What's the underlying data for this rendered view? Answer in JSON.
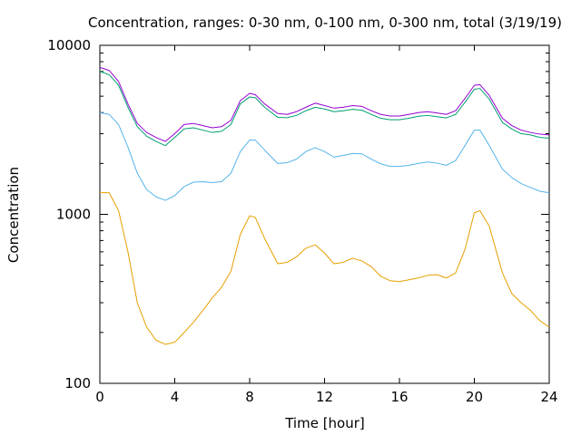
{
  "chart_data": {
    "type": "line",
    "title": "Concentration, ranges: 0-30 nm, 0-100 nm, 0-300 nm, total (3/19/19)",
    "xlabel": "Time [hour]",
    "ylabel": "Concentration",
    "xlim": [
      0,
      24
    ],
    "ylim": [
      100,
      10000
    ],
    "yscale": "log",
    "x_ticks": [
      0,
      4,
      8,
      12,
      16,
      20,
      24
    ],
    "x_tick_labels": [
      "0",
      "4",
      "8",
      "12",
      "16",
      "20",
      "24"
    ],
    "y_ticks": [
      100,
      1000,
      10000
    ],
    "y_tick_labels": [
      "100",
      "1000",
      "10000"
    ],
    "grid": false,
    "legend": "none",
    "series": [
      {
        "color": "#e69f00",
        "x": [
          0,
          0.5,
          1,
          1.5,
          2,
          2.5,
          3,
          3.5,
          4,
          4.5,
          5,
          5.5,
          6,
          6.5,
          7,
          7.5,
          8,
          8.3,
          8.8,
          9.5,
          10,
          10.5,
          11,
          11.5,
          12,
          12.5,
          13,
          13.5,
          14,
          14.5,
          15,
          15.5,
          16,
          16.5,
          17,
          17.5,
          18,
          18.5,
          19,
          19.5,
          20,
          20.3,
          20.8,
          21.5,
          22,
          22.5,
          23,
          23.5,
          24
        ],
        "values": [
          1350,
          1340,
          1050,
          600,
          300,
          215,
          180,
          170,
          175,
          200,
          230,
          270,
          320,
          370,
          460,
          760,
          980,
          960,
          720,
          510,
          520,
          560,
          630,
          660,
          590,
          510,
          520,
          550,
          530,
          490,
          430,
          405,
          400,
          410,
          420,
          435,
          440,
          420,
          450,
          620,
          1020,
          1050,
          850,
          450,
          340,
          300,
          270,
          235,
          215
        ]
      },
      {
        "color": "#56b4e9",
        "x": [
          0,
          0.5,
          1,
          1.5,
          2,
          2.5,
          3,
          3.5,
          4,
          4.5,
          5,
          5.5,
          6,
          6.5,
          7,
          7.5,
          8,
          8.3,
          8.8,
          9.5,
          10,
          10.5,
          11,
          11.5,
          12,
          12.5,
          13,
          13.5,
          14,
          14.5,
          15,
          15.5,
          16,
          16.5,
          17,
          17.5,
          18,
          18.5,
          19,
          19.5,
          20,
          20.3,
          20.8,
          21.5,
          22,
          22.5,
          23,
          23.5,
          24
        ],
        "values": [
          4000,
          3900,
          3400,
          2500,
          1750,
          1400,
          1270,
          1210,
          1290,
          1460,
          1550,
          1560,
          1540,
          1560,
          1750,
          2350,
          2750,
          2750,
          2400,
          2000,
          2020,
          2120,
          2350,
          2480,
          2350,
          2180,
          2230,
          2290,
          2280,
          2120,
          1990,
          1920,
          1920,
          1950,
          2000,
          2040,
          2010,
          1950,
          2080,
          2550,
          3150,
          3150,
          2550,
          1850,
          1650,
          1520,
          1440,
          1370,
          1340
        ]
      },
      {
        "color": "#009e73",
        "x": [
          0,
          0.5,
          1,
          1.5,
          2,
          2.5,
          3,
          3.5,
          4,
          4.5,
          5,
          5.5,
          6,
          6.5,
          7,
          7.5,
          8,
          8.3,
          8.8,
          9.5,
          10,
          10.5,
          11,
          11.5,
          12,
          12.5,
          13,
          13.5,
          14,
          14.5,
          15,
          15.5,
          16,
          16.5,
          17,
          17.5,
          18,
          18.5,
          19,
          19.5,
          20,
          20.3,
          20.8,
          21.5,
          22,
          22.5,
          23,
          23.5,
          24
        ],
        "values": [
          7000,
          6700,
          5800,
          4300,
          3300,
          2900,
          2700,
          2550,
          2850,
          3200,
          3250,
          3150,
          3050,
          3100,
          3400,
          4500,
          4950,
          4900,
          4300,
          3750,
          3730,
          3850,
          4100,
          4300,
          4200,
          4050,
          4100,
          4180,
          4130,
          3900,
          3700,
          3630,
          3630,
          3700,
          3800,
          3850,
          3780,
          3720,
          3900,
          4600,
          5500,
          5550,
          4800,
          3500,
          3200,
          3000,
          2950,
          2850,
          2820
        ]
      },
      {
        "color": "#9400d3",
        "x": [
          0,
          0.5,
          1,
          1.5,
          2,
          2.5,
          3,
          3.5,
          4,
          4.5,
          5,
          5.5,
          6,
          6.5,
          7,
          7.5,
          8,
          8.3,
          8.8,
          9.5,
          10,
          10.5,
          11,
          11.5,
          12,
          12.5,
          13,
          13.5,
          14,
          14.5,
          15,
          15.5,
          16,
          16.5,
          17,
          17.5,
          18,
          18.5,
          19,
          19.5,
          20,
          20.3,
          20.8,
          21.5,
          22,
          22.5,
          23,
          23.5,
          24
        ],
        "values": [
          7400,
          7100,
          6100,
          4500,
          3450,
          3050,
          2850,
          2700,
          3000,
          3400,
          3450,
          3350,
          3250,
          3300,
          3600,
          4700,
          5200,
          5100,
          4500,
          3950,
          3900,
          4050,
          4300,
          4550,
          4400,
          4250,
          4300,
          4400,
          4350,
          4100,
          3900,
          3820,
          3820,
          3900,
          4000,
          4050,
          3980,
          3900,
          4100,
          4850,
          5800,
          5850,
          5050,
          3700,
          3350,
          3150,
          3050,
          2980,
          2950
        ]
      }
    ]
  }
}
